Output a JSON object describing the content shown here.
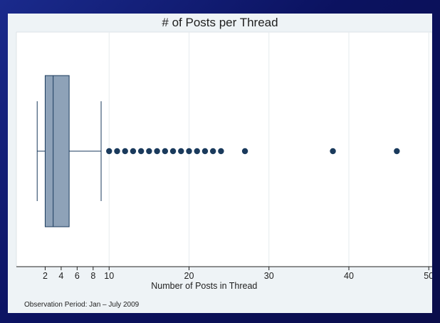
{
  "chart_data": {
    "type": "box",
    "orientation": "horizontal",
    "title": "# of Posts per Thread",
    "xlabel": "Number of Posts in Thread",
    "ylabel": "",
    "xlim": [
      0,
      51
    ],
    "xticks": [
      2,
      4,
      6,
      8,
      10,
      20,
      30,
      40,
      50
    ],
    "grid": "vertical lines at 10, 20, 30, 40, 50",
    "box": {
      "whisker_low": 1,
      "q1": 2,
      "median": 3,
      "q3": 5,
      "whisker_high": 9
    },
    "outliers": [
      10,
      11,
      12,
      13,
      14,
      15,
      16,
      17,
      18,
      19,
      20,
      21,
      22,
      23,
      24,
      27,
      38,
      46
    ],
    "colors": {
      "box_fill": "#8ea2b8",
      "box_stroke": "#1a3a5c",
      "outlier": "#1a3a5c",
      "grid": "#ffffff",
      "plot_background": "#ffffff"
    },
    "note": "Observation Period: Jan – July 2009"
  }
}
